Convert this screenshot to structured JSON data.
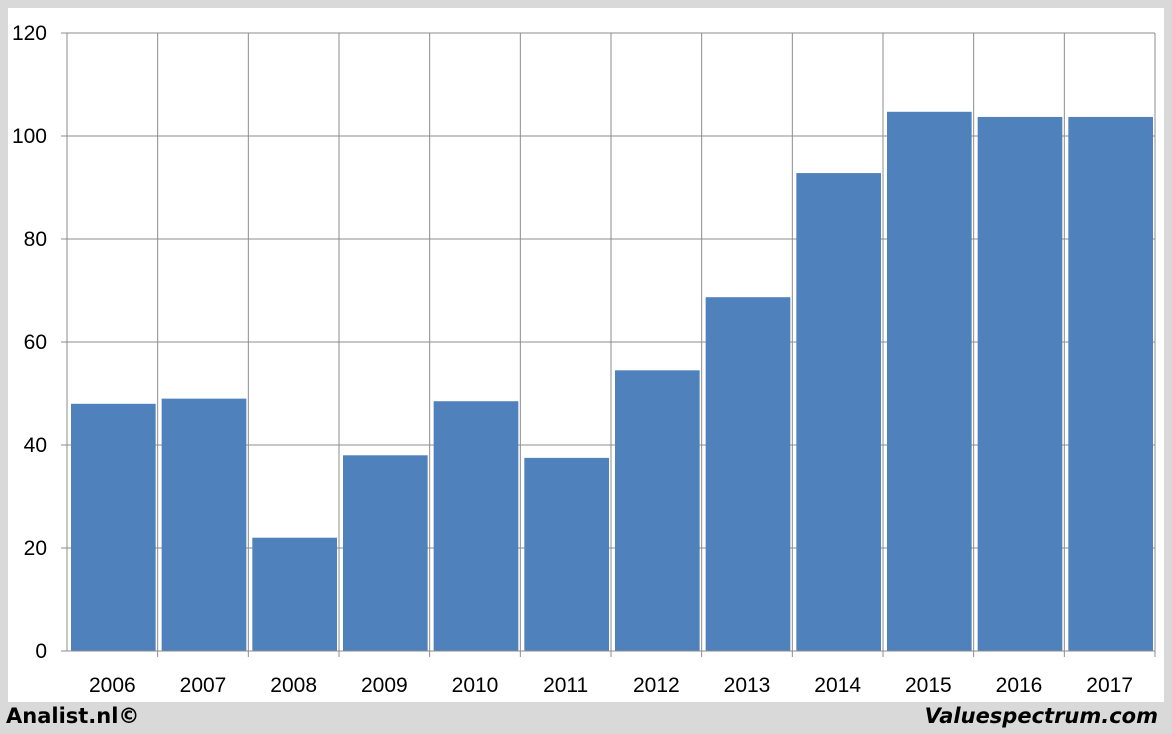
{
  "chart_data": {
    "type": "bar",
    "categories": [
      "2006",
      "2007",
      "2008",
      "2009",
      "2010",
      "2011",
      "2012",
      "2013",
      "2014",
      "2015",
      "2016",
      "2017"
    ],
    "values": [
      48,
      49,
      22,
      38,
      48.5,
      37.5,
      54.5,
      68.7,
      92.8,
      104.7,
      103.7,
      103.7
    ],
    "title": "",
    "xlabel": "",
    "ylabel": "",
    "ylim": [
      0,
      120
    ],
    "yticks": [
      0,
      20,
      40,
      60,
      80,
      100,
      120
    ],
    "grid": true,
    "bar_color": "#4f81bd"
  },
  "footer": {
    "left": "Analist.nl©",
    "right": "Valuespectrum.com"
  }
}
